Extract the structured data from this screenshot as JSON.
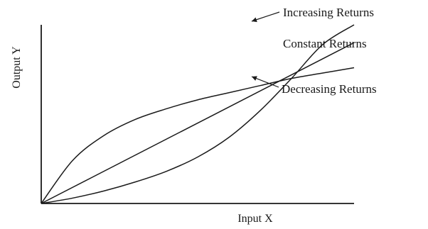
{
  "chart_data": {
    "type": "line",
    "title": "",
    "xlabel": "Input X",
    "ylabel": "Output Y",
    "xlim": [
      0,
      10
    ],
    "ylim": [
      0,
      10
    ],
    "grid": false,
    "legend": "none",
    "series": [
      {
        "name": "Increasing Returns",
        "x": [
          0,
          1,
          2,
          3,
          4,
          5,
          6,
          7,
          8,
          9,
          10
        ],
        "y": [
          0,
          0.3,
          0.7,
          1.2,
          1.8,
          2.6,
          3.7,
          5.2,
          7.0,
          8.9,
          10.0
        ]
      },
      {
        "name": "Constant Returns",
        "x": [
          0,
          10
        ],
        "y": [
          0,
          9.0
        ]
      },
      {
        "name": "Decreasing Returns",
        "x": [
          0,
          1,
          2,
          3,
          4,
          5,
          6,
          7,
          8,
          9,
          10
        ],
        "y": [
          0,
          2.4,
          3.8,
          4.7,
          5.3,
          5.8,
          6.2,
          6.6,
          7.0,
          7.3,
          7.6
        ]
      }
    ]
  },
  "colors": {
    "line": "#1a1a1a",
    "background": "#ffffff"
  }
}
